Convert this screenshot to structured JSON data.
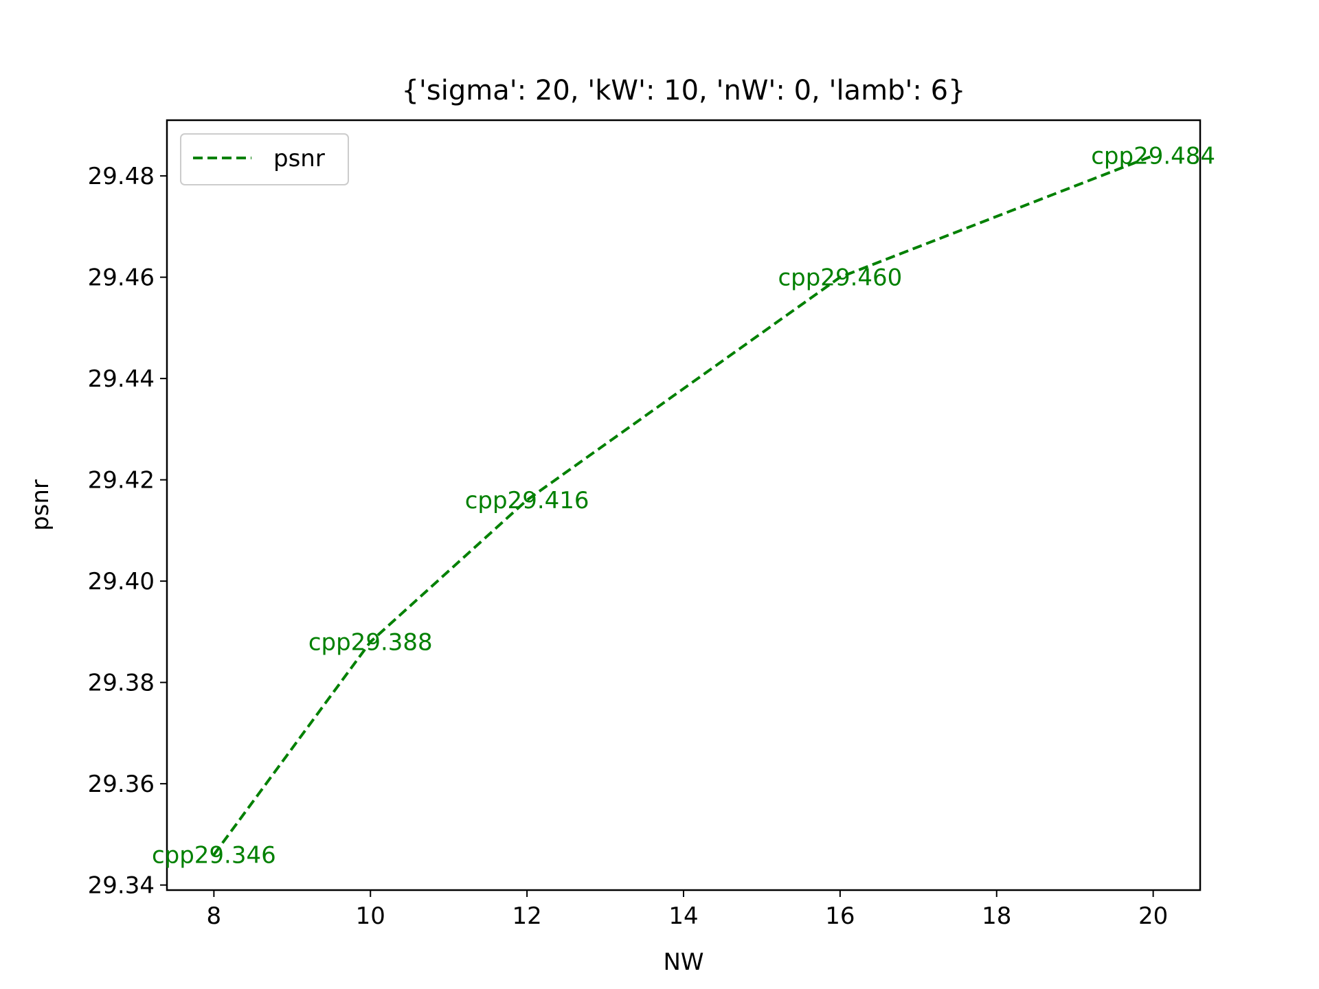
{
  "chart_data": {
    "type": "line",
    "title": "{'sigma': 20, 'kW': 10, 'nW': 0, 'lamb': 6}",
    "xlabel": "NW",
    "ylabel": "psnr",
    "xlim": [
      7.4,
      20.6
    ],
    "ylim": [
      29.339,
      29.491
    ],
    "xticks": [
      8,
      10,
      12,
      14,
      16,
      18,
      20
    ],
    "xtick_labels": [
      "8",
      "10",
      "12",
      "14",
      "16",
      "18",
      "20"
    ],
    "yticks": [
      29.34,
      29.36,
      29.38,
      29.4,
      29.42,
      29.44,
      29.46,
      29.48
    ],
    "ytick_labels": [
      "29.34",
      "29.36",
      "29.38",
      "29.40",
      "29.42",
      "29.44",
      "29.46",
      "29.48"
    ],
    "grid": false,
    "legend_position": "top-left",
    "series": [
      {
        "name": "psnr",
        "color": "#008000",
        "line_style": "dashed",
        "x": [
          8,
          10,
          12,
          16,
          20
        ],
        "values": [
          29.346,
          29.388,
          29.416,
          29.46,
          29.484
        ],
        "labels": [
          "cpp29.346",
          "cpp29.388",
          "cpp29.416",
          "cpp29.460",
          "cpp29.484"
        ]
      }
    ]
  }
}
